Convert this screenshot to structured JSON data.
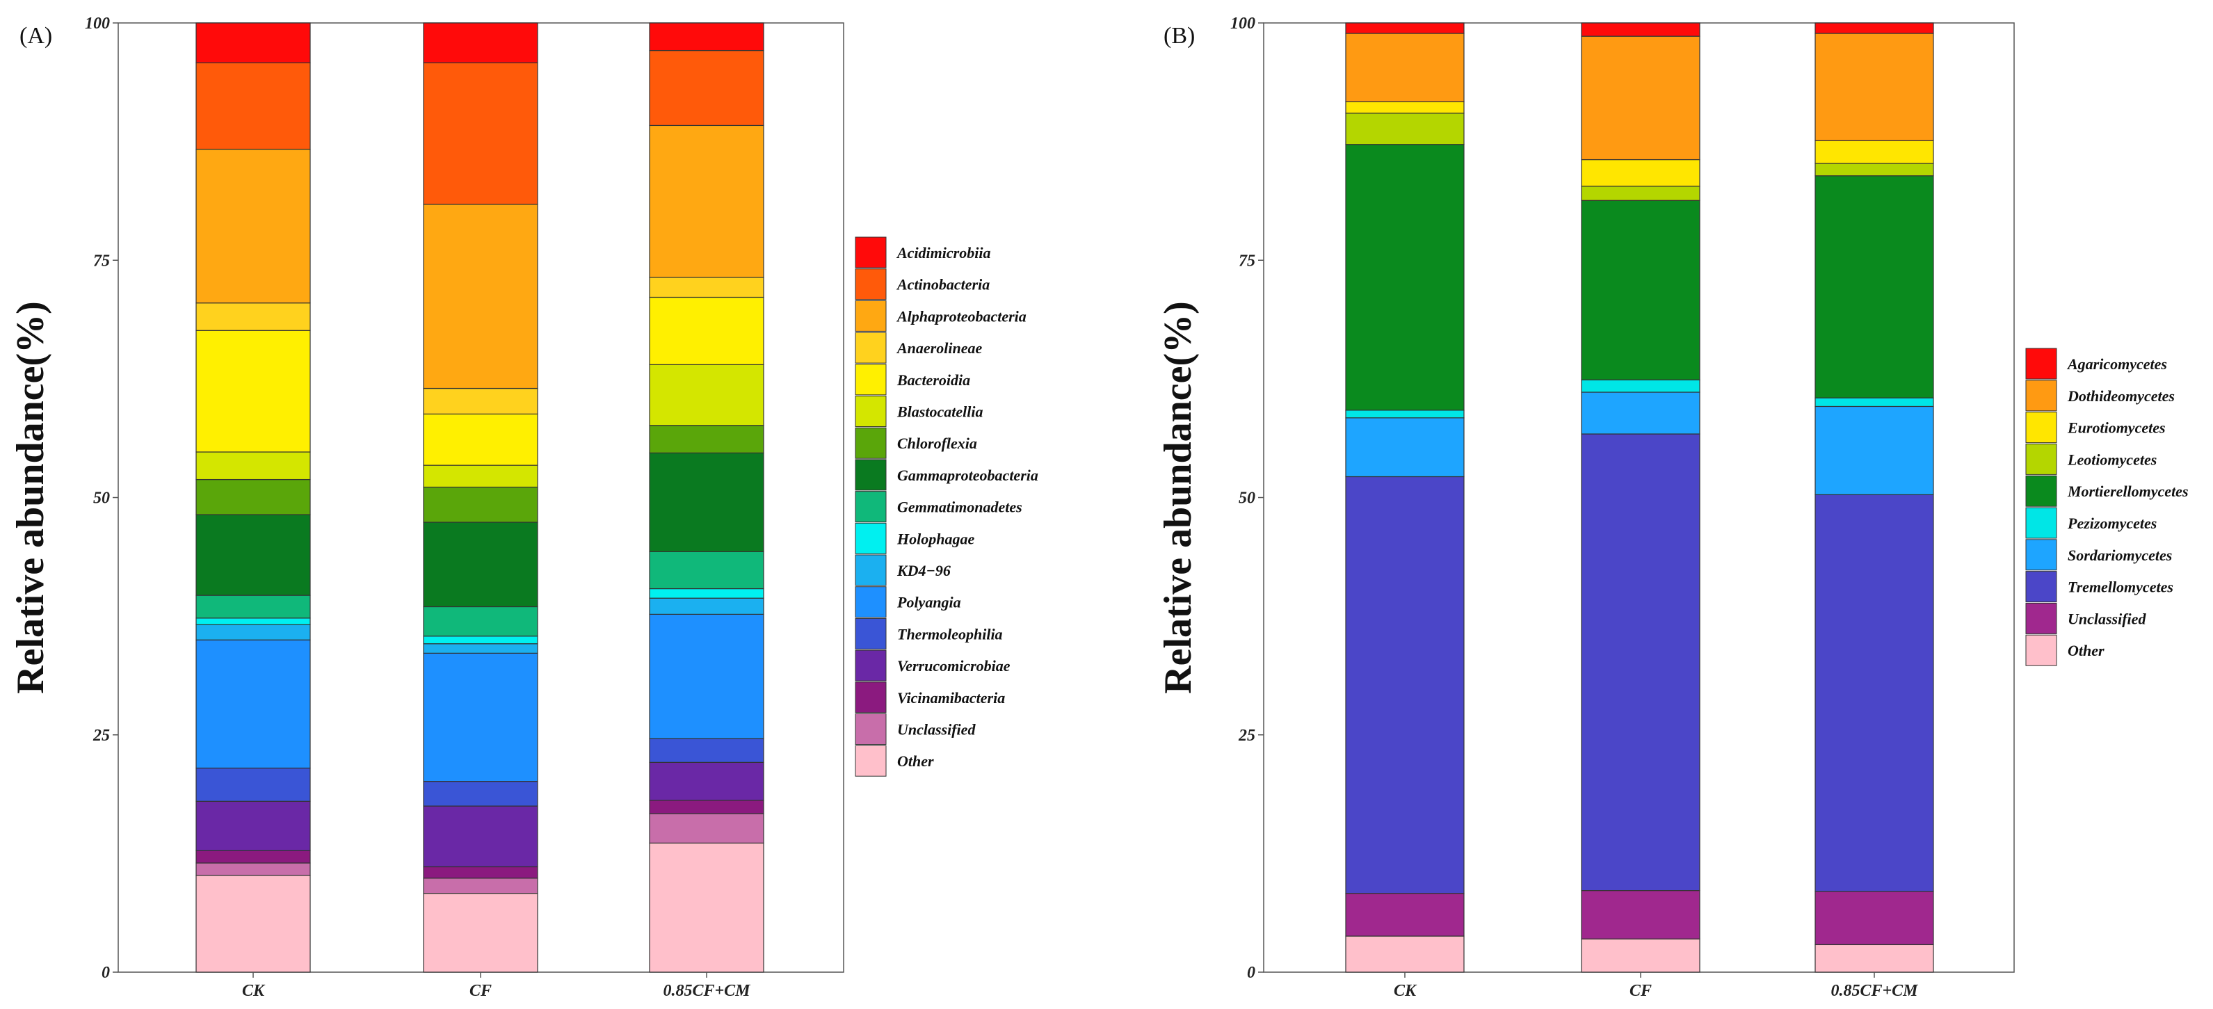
{
  "chart_data": [
    {
      "type": "bar",
      "stacked": true,
      "panel_label": "(A)",
      "title": "",
      "xlabel": "",
      "ylabel": "Relative abundance(%)",
      "ylim": [
        0,
        100
      ],
      "yticks": [
        "0",
        "25",
        "50",
        "75",
        "100"
      ],
      "categories": [
        "CK",
        "CF",
        "0.85CF+CM"
      ],
      "legend_position": "right",
      "series": [
        {
          "name": "Other",
          "color": "#FFC0CB",
          "values": [
            10.2,
            8.3,
            13.6
          ]
        },
        {
          "name": "Unclassified",
          "color": "#C86EAA",
          "values": [
            1.3,
            1.6,
            3.1
          ]
        },
        {
          "name": "Vicinamibacteria",
          "color": "#8B1A7F",
          "values": [
            1.3,
            1.2,
            1.4
          ]
        },
        {
          "name": "Verrucomicrobiae",
          "color": "#6A28A6",
          "values": [
            5.2,
            6.4,
            4.0
          ]
        },
        {
          "name": "Thermoleophilia",
          "color": "#3A55D6",
          "values": [
            3.5,
            2.6,
            2.5
          ]
        },
        {
          "name": "Polyangia",
          "color": "#1E90FF",
          "values": [
            13.5,
            13.5,
            13.1
          ]
        },
        {
          "name": "KD4-96",
          "color": "#1BB0F0",
          "values": [
            1.6,
            1.0,
            1.7
          ]
        },
        {
          "name": "Holophagae",
          "color": "#00F0F0",
          "values": [
            0.7,
            0.8,
            1.0
          ]
        },
        {
          "name": "Gemmatimonadetes",
          "color": "#10B87A",
          "values": [
            2.4,
            3.1,
            3.9
          ]
        },
        {
          "name": "Gammaproteobacteria",
          "color": "#0A7A20",
          "values": [
            8.5,
            8.9,
            10.4
          ]
        },
        {
          "name": "Chloroflexia",
          "color": "#5AA60A",
          "values": [
            3.7,
            3.7,
            2.9
          ]
        },
        {
          "name": "Blastocatellia",
          "color": "#D4E600",
          "values": [
            2.9,
            2.3,
            6.4
          ]
        },
        {
          "name": "Bacteroidia",
          "color": "#FFF000",
          "values": [
            12.8,
            5.4,
            7.1
          ]
        },
        {
          "name": "Anaerolineae",
          "color": "#FFD21E",
          "values": [
            2.9,
            2.7,
            2.1
          ]
        },
        {
          "name": "Alphaproteobacteria",
          "color": "#FFA812",
          "values": [
            16.2,
            19.4,
            16.0
          ]
        },
        {
          "name": "Actinobacteria",
          "color": "#FF5A0A",
          "values": [
            9.1,
            14.9,
            7.9
          ]
        },
        {
          "name": "Acidimicrobiia",
          "color": "#FF0A0A",
          "values": [
            4.2,
            4.2,
            2.9
          ]
        }
      ],
      "legend_entries": [
        "Acidimicrobiia",
        "Actinobacteria",
        "Alphaproteobacteria",
        "Anaerolineae",
        "Bacteroidia",
        "Blastocatellia",
        "Chloroflexia",
        "Gammaproteobacteria",
        "Gemmatimonadetes",
        "Holophagae",
        "KD4−96",
        "Polyangia",
        "Thermoleophilia",
        "Verrucomicrobiae",
        "Vicinamibacteria",
        "Unclassified",
        "Other"
      ]
    },
    {
      "type": "bar",
      "stacked": true,
      "panel_label": "(B)",
      "title": "",
      "xlabel": "",
      "ylabel": "Relative abundance(%)",
      "ylim": [
        0,
        100
      ],
      "yticks": [
        "0",
        "25",
        "50",
        "75",
        "100"
      ],
      "categories": [
        "CK",
        "CF",
        "0.85CF+CM"
      ],
      "legend_position": "right",
      "series": [
        {
          "name": "Other",
          "color": "#FFC0CB",
          "values": [
            3.8,
            3.5,
            2.9
          ]
        },
        {
          "name": "Unclassified",
          "color": "#A0288E",
          "values": [
            4.5,
            5.1,
            5.6
          ]
        },
        {
          "name": "Tremellomycetes",
          "color": "#4B46C8",
          "values": [
            43.9,
            48.1,
            41.8
          ]
        },
        {
          "name": "Sordariomycetes",
          "color": "#1EA5FF",
          "values": [
            6.2,
            4.4,
            9.3
          ]
        },
        {
          "name": "Pezizomycetes",
          "color": "#00E6E6",
          "values": [
            0.8,
            1.3,
            0.9
          ]
        },
        {
          "name": "Mortierellomycetes",
          "color": "#0A8A1E",
          "values": [
            28.0,
            18.9,
            23.4
          ]
        },
        {
          "name": "Leotiomycetes",
          "color": "#B4D600",
          "values": [
            3.3,
            1.5,
            1.3
          ]
        },
        {
          "name": "Eurotiomycetes",
          "color": "#FFE600",
          "values": [
            1.2,
            2.8,
            2.4
          ]
        },
        {
          "name": "Dothideomycetes",
          "color": "#FF9A12",
          "values": [
            7.2,
            13.0,
            11.3
          ]
        },
        {
          "name": "Agaricomycetes",
          "color": "#FF0A0A",
          "values": [
            1.1,
            1.4,
            1.1
          ]
        }
      ],
      "legend_entries": [
        "Agaricomycetes",
        "Dothideomycetes",
        "Eurotiomycetes",
        "Leotiomycetes",
        "Mortierellomycetes",
        "Pezizomycetes",
        "Sordariomycetes",
        "Tremellomycetes",
        "Unclassified",
        "Other"
      ]
    }
  ]
}
